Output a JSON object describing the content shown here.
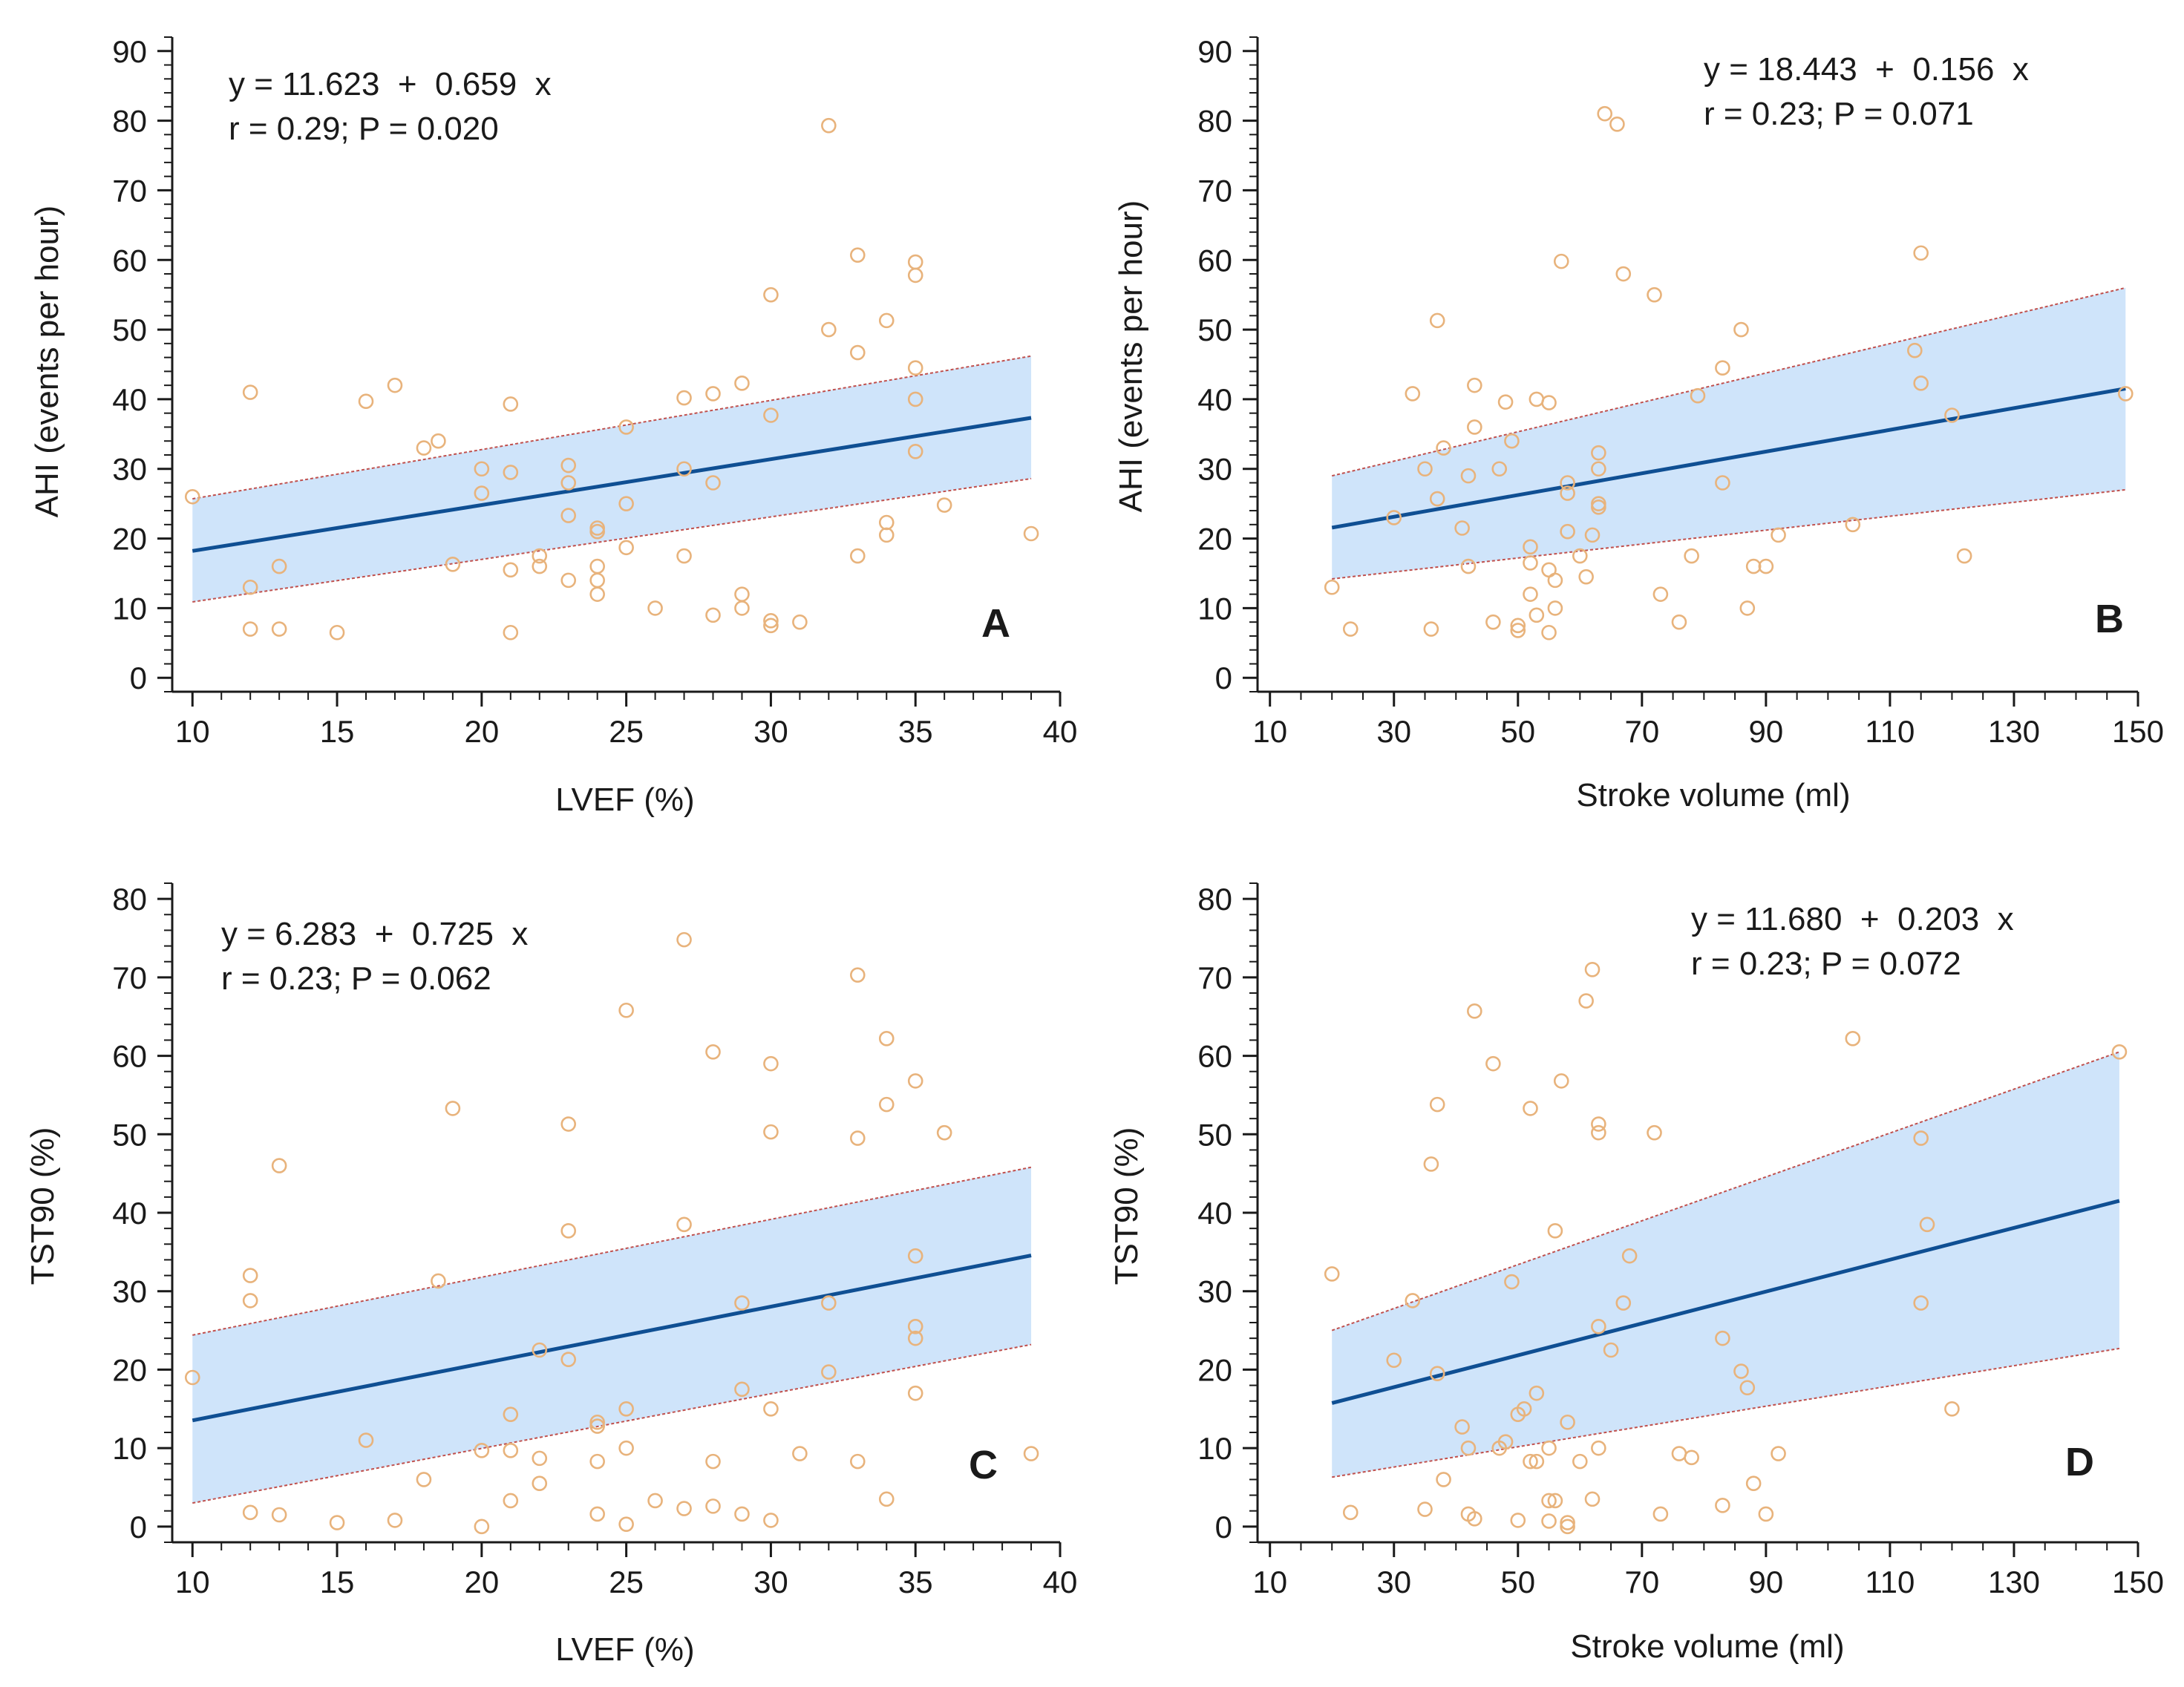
{
  "colors": {
    "band_fill": "#cfe4fa",
    "band_edge": "#c0504d",
    "fit_line": "#0f4f93",
    "point": "#e8b37c",
    "axis": "#1a1a1a"
  },
  "chart_data": [
    {
      "id": "A",
      "type": "scatter",
      "panel_label": "A",
      "xlabel": "LVEF (%)",
      "ylabel": "AHI (events per hour)",
      "xlim": [
        9.3,
        40
      ],
      "ylim": [
        -2,
        92
      ],
      "xticks": [
        10,
        15,
        20,
        25,
        30,
        35,
        40
      ],
      "yticks": [
        0,
        10,
        20,
        30,
        40,
        50,
        60,
        70,
        80,
        90
      ],
      "xminor": 1,
      "yminor": 2,
      "equation": "y = 11.623  +  0.659  x",
      "stats": "r = 0.29; P = 0.020",
      "fit": {
        "intercept": 11.623,
        "slope": 0.659,
        "x_range": [
          10,
          39
        ]
      },
      "ci_band": {
        "x0": 10,
        "x1": 39,
        "lower0": 10.9,
        "lower1": 28.6,
        "upper0": 25.7,
        "upper1": 46.2
      },
      "points": [
        [
          10,
          26
        ],
        [
          12,
          41
        ],
        [
          12,
          13
        ],
        [
          12,
          7
        ],
        [
          13,
          7
        ],
        [
          13,
          16
        ],
        [
          15,
          6.5
        ],
        [
          16,
          39.7
        ],
        [
          17,
          42
        ],
        [
          18,
          33
        ],
        [
          18.5,
          34
        ],
        [
          19,
          16.3
        ],
        [
          20,
          30
        ],
        [
          20,
          26.5
        ],
        [
          21,
          39.3
        ],
        [
          21,
          29.5
        ],
        [
          21,
          15.5
        ],
        [
          21,
          6.5
        ],
        [
          22,
          17.5
        ],
        [
          22,
          16
        ],
        [
          23,
          30.5
        ],
        [
          23,
          28
        ],
        [
          23,
          23.3
        ],
        [
          23,
          14
        ],
        [
          24,
          21.5
        ],
        [
          24,
          21
        ],
        [
          24,
          16
        ],
        [
          24,
          14
        ],
        [
          24,
          12
        ],
        [
          25,
          36
        ],
        [
          25,
          25
        ],
        [
          25,
          18.7
        ],
        [
          26,
          10
        ],
        [
          27,
          40.2
        ],
        [
          27,
          30
        ],
        [
          27,
          17.5
        ],
        [
          28,
          40.8
        ],
        [
          28,
          28
        ],
        [
          28,
          9
        ],
        [
          29,
          42.3
        ],
        [
          29,
          12
        ],
        [
          29,
          10
        ],
        [
          30,
          55
        ],
        [
          30,
          37.7
        ],
        [
          30,
          8.2
        ],
        [
          30,
          7.5
        ],
        [
          31,
          8
        ],
        [
          32,
          79.3
        ],
        [
          32,
          50
        ],
        [
          33,
          60.7
        ],
        [
          33,
          46.7
        ],
        [
          33,
          17.5
        ],
        [
          34,
          51.3
        ],
        [
          34,
          22.3
        ],
        [
          34,
          20.5
        ],
        [
          35,
          59.7
        ],
        [
          35,
          57.8
        ],
        [
          35,
          44.5
        ],
        [
          35,
          40
        ],
        [
          35,
          32.5
        ],
        [
          36,
          24.8
        ],
        [
          39,
          20.7
        ]
      ]
    },
    {
      "id": "B",
      "type": "scatter",
      "panel_label": "B",
      "xlabel": "Stroke volume (ml)",
      "ylabel": "AHI (events per hour)",
      "xlim": [
        8,
        150
      ],
      "ylim": [
        -2,
        92
      ],
      "xticks": [
        10,
        30,
        50,
        70,
        90,
        110,
        130,
        150
      ],
      "yticks": [
        0,
        10,
        20,
        30,
        40,
        50,
        60,
        70,
        80,
        90
      ],
      "xminor": 5,
      "yminor": 2,
      "equation": "y = 18.443  +  0.156  x",
      "stats": "r = 0.23; P = 0.071",
      "fit": {
        "intercept": 18.443,
        "slope": 0.156,
        "x_range": [
          20,
          148
        ]
      },
      "ci_band": {
        "x0": 20,
        "x1": 148,
        "lower0": 14.2,
        "lower1": 27.0,
        "upper0": 29.0,
        "upper1": 56.0
      },
      "points": [
        [
          20,
          13
        ],
        [
          23,
          7
        ],
        [
          30,
          23
        ],
        [
          33,
          40.8
        ],
        [
          35,
          30
        ],
        [
          36,
          7
        ],
        [
          37,
          51.3
        ],
        [
          37,
          25.7
        ],
        [
          38,
          33
        ],
        [
          41,
          21.5
        ],
        [
          42,
          29
        ],
        [
          42,
          16
        ],
        [
          43,
          42
        ],
        [
          43,
          36
        ],
        [
          46,
          8
        ],
        [
          47,
          30
        ],
        [
          48,
          39.6
        ],
        [
          49,
          34
        ],
        [
          50,
          7.5
        ],
        [
          50,
          6.8
        ],
        [
          52,
          18.8
        ],
        [
          52,
          16.5
        ],
        [
          52,
          12
        ],
        [
          53,
          40
        ],
        [
          53,
          9
        ],
        [
          55,
          39.5
        ],
        [
          55,
          15.5
        ],
        [
          55,
          6.5
        ],
        [
          56,
          14
        ],
        [
          56,
          10
        ],
        [
          57,
          59.8
        ],
        [
          58,
          28
        ],
        [
          58,
          26.5
        ],
        [
          58,
          21
        ],
        [
          60,
          17.5
        ],
        [
          61,
          14.5
        ],
        [
          62,
          20.5
        ],
        [
          63,
          32.3
        ],
        [
          63,
          30
        ],
        [
          63,
          25
        ],
        [
          63,
          24.5
        ],
        [
          64,
          81
        ],
        [
          66,
          79.5
        ],
        [
          67,
          58
        ],
        [
          72,
          55
        ],
        [
          73,
          12
        ],
        [
          76,
          8
        ],
        [
          78,
          17.5
        ],
        [
          79,
          40.5
        ],
        [
          83,
          44.5
        ],
        [
          83,
          28
        ],
        [
          86,
          50
        ],
        [
          87,
          10
        ],
        [
          88,
          16
        ],
        [
          90,
          16
        ],
        [
          92,
          20.5
        ],
        [
          104,
          22
        ],
        [
          114,
          47
        ],
        [
          115,
          61
        ],
        [
          115,
          42.3
        ],
        [
          120,
          37.7
        ],
        [
          122,
          17.5
        ],
        [
          148,
          40.8
        ]
      ]
    },
    {
      "id": "C",
      "type": "scatter",
      "panel_label": "C",
      "xlabel": "LVEF (%)",
      "ylabel": "TST90 (%)",
      "xlim": [
        9.3,
        40
      ],
      "ylim": [
        -2,
        82
      ],
      "xticks": [
        10,
        15,
        20,
        25,
        30,
        35,
        40
      ],
      "yticks": [
        0,
        10,
        20,
        30,
        40,
        50,
        60,
        70,
        80
      ],
      "xminor": 1,
      "yminor": 2,
      "equation": "y = 6.283  +  0.725  x",
      "stats": "r = 0.23; P = 0.062",
      "fit": {
        "intercept": 6.283,
        "slope": 0.725,
        "x_range": [
          10,
          39
        ]
      },
      "ci_band": {
        "x0": 10,
        "x1": 39,
        "lower0": 3.0,
        "lower1": 23.2,
        "upper0": 24.4,
        "upper1": 45.8
      },
      "points": [
        [
          10,
          19
        ],
        [
          12,
          32
        ],
        [
          12,
          28.8
        ],
        [
          12,
          1.8
        ],
        [
          13,
          46
        ],
        [
          13,
          1.5
        ],
        [
          15,
          0.5
        ],
        [
          16,
          11
        ],
        [
          17,
          0.8
        ],
        [
          18,
          6
        ],
        [
          18.5,
          31.3
        ],
        [
          19,
          53.3
        ],
        [
          20,
          9.7
        ],
        [
          20,
          0
        ],
        [
          21,
          14.3
        ],
        [
          21,
          9.7
        ],
        [
          21,
          3.3
        ],
        [
          22,
          8.7
        ],
        [
          22,
          5.5
        ],
        [
          22,
          22.5
        ],
        [
          23,
          51.3
        ],
        [
          23,
          37.7
        ],
        [
          23,
          21.3
        ],
        [
          24,
          13.3
        ],
        [
          24,
          12.8
        ],
        [
          24,
          8.3
        ],
        [
          24,
          1.6
        ],
        [
          25,
          65.8
        ],
        [
          25,
          15
        ],
        [
          25,
          10
        ],
        [
          25,
          0.3
        ],
        [
          26,
          3.3
        ],
        [
          27,
          74.8
        ],
        [
          27,
          38.5
        ],
        [
          27,
          2.3
        ],
        [
          28,
          60.5
        ],
        [
          28,
          8.3
        ],
        [
          28,
          2.6
        ],
        [
          29,
          17.5
        ],
        [
          29,
          28.5
        ],
        [
          29,
          1.6
        ],
        [
          30,
          59
        ],
        [
          30,
          50.3
        ],
        [
          30,
          15
        ],
        [
          30,
          0.8
        ],
        [
          31,
          9.3
        ],
        [
          32,
          28.5
        ],
        [
          32,
          19.7
        ],
        [
          33,
          70.3
        ],
        [
          33,
          49.5
        ],
        [
          33,
          8.3
        ],
        [
          34,
          62.2
        ],
        [
          34,
          53.8
        ],
        [
          34,
          3.5
        ],
        [
          35,
          56.8
        ],
        [
          35,
          34.5
        ],
        [
          35,
          25.5
        ],
        [
          35,
          24
        ],
        [
          35,
          17
        ],
        [
          36,
          50.2
        ],
        [
          39,
          9.3
        ]
      ]
    },
    {
      "id": "D",
      "type": "scatter",
      "panel_label": "D",
      "xlabel": "Stroke volume (ml)",
      "ylabel": "TST90 (%)",
      "xlim": [
        8,
        150
      ],
      "ylim": [
        -2,
        82
      ],
      "xticks": [
        10,
        30,
        50,
        70,
        90,
        110,
        130,
        150
      ],
      "yticks": [
        0,
        10,
        20,
        30,
        40,
        50,
        60,
        70,
        80
      ],
      "xminor": 5,
      "yminor": 2,
      "equation": "y = 11.680  +  0.203  x",
      "stats": "r = 0.23; P = 0.072",
      "fit": {
        "intercept": 11.68,
        "slope": 0.203,
        "x_range": [
          20,
          147
        ]
      },
      "ci_band": {
        "x0": 20,
        "x1": 147,
        "lower0": 6.3,
        "lower1": 22.7,
        "upper0": 25.0,
        "upper1": 60.5
      },
      "points": [
        [
          20,
          32.2
        ],
        [
          23,
          1.8
        ],
        [
          30,
          21.2
        ],
        [
          33,
          28.8
        ],
        [
          35,
          2.2
        ],
        [
          36,
          46.2
        ],
        [
          37,
          53.8
        ],
        [
          37,
          19.5
        ],
        [
          38,
          6
        ],
        [
          41,
          12.7
        ],
        [
          42,
          10
        ],
        [
          42,
          1.6
        ],
        [
          43,
          65.7
        ],
        [
          43,
          1
        ],
        [
          46,
          59
        ],
        [
          47,
          10
        ],
        [
          48,
          10.8
        ],
        [
          49,
          31.2
        ],
        [
          50,
          14.3
        ],
        [
          50,
          0.8
        ],
        [
          51,
          15
        ],
        [
          52,
          53.3
        ],
        [
          52,
          8.3
        ],
        [
          53,
          17
        ],
        [
          53,
          8.3
        ],
        [
          55,
          10
        ],
        [
          55,
          3.3
        ],
        [
          55,
          0.7
        ],
        [
          56,
          37.7
        ],
        [
          56,
          3.3
        ],
        [
          57,
          56.8
        ],
        [
          58,
          13.3
        ],
        [
          58,
          0.5
        ],
        [
          58,
          0
        ],
        [
          60,
          8.3
        ],
        [
          61,
          67
        ],
        [
          62,
          71
        ],
        [
          62,
          3.5
        ],
        [
          63,
          51.3
        ],
        [
          63,
          50.2
        ],
        [
          63,
          25.5
        ],
        [
          63,
          10
        ],
        [
          65,
          22.5
        ],
        [
          67,
          28.5
        ],
        [
          68,
          34.5
        ],
        [
          72,
          50.2
        ],
        [
          73,
          1.6
        ],
        [
          76,
          9.3
        ],
        [
          78,
          8.8
        ],
        [
          83,
          24
        ],
        [
          83,
          2.7
        ],
        [
          86,
          19.8
        ],
        [
          87,
          17.7
        ],
        [
          88,
          5.5
        ],
        [
          90,
          1.6
        ],
        [
          92,
          9.3
        ],
        [
          104,
          62.2
        ],
        [
          115,
          49.5
        ],
        [
          115,
          28.5
        ],
        [
          116,
          38.5
        ],
        [
          120,
          15
        ],
        [
          147,
          60.5
        ]
      ]
    }
  ]
}
